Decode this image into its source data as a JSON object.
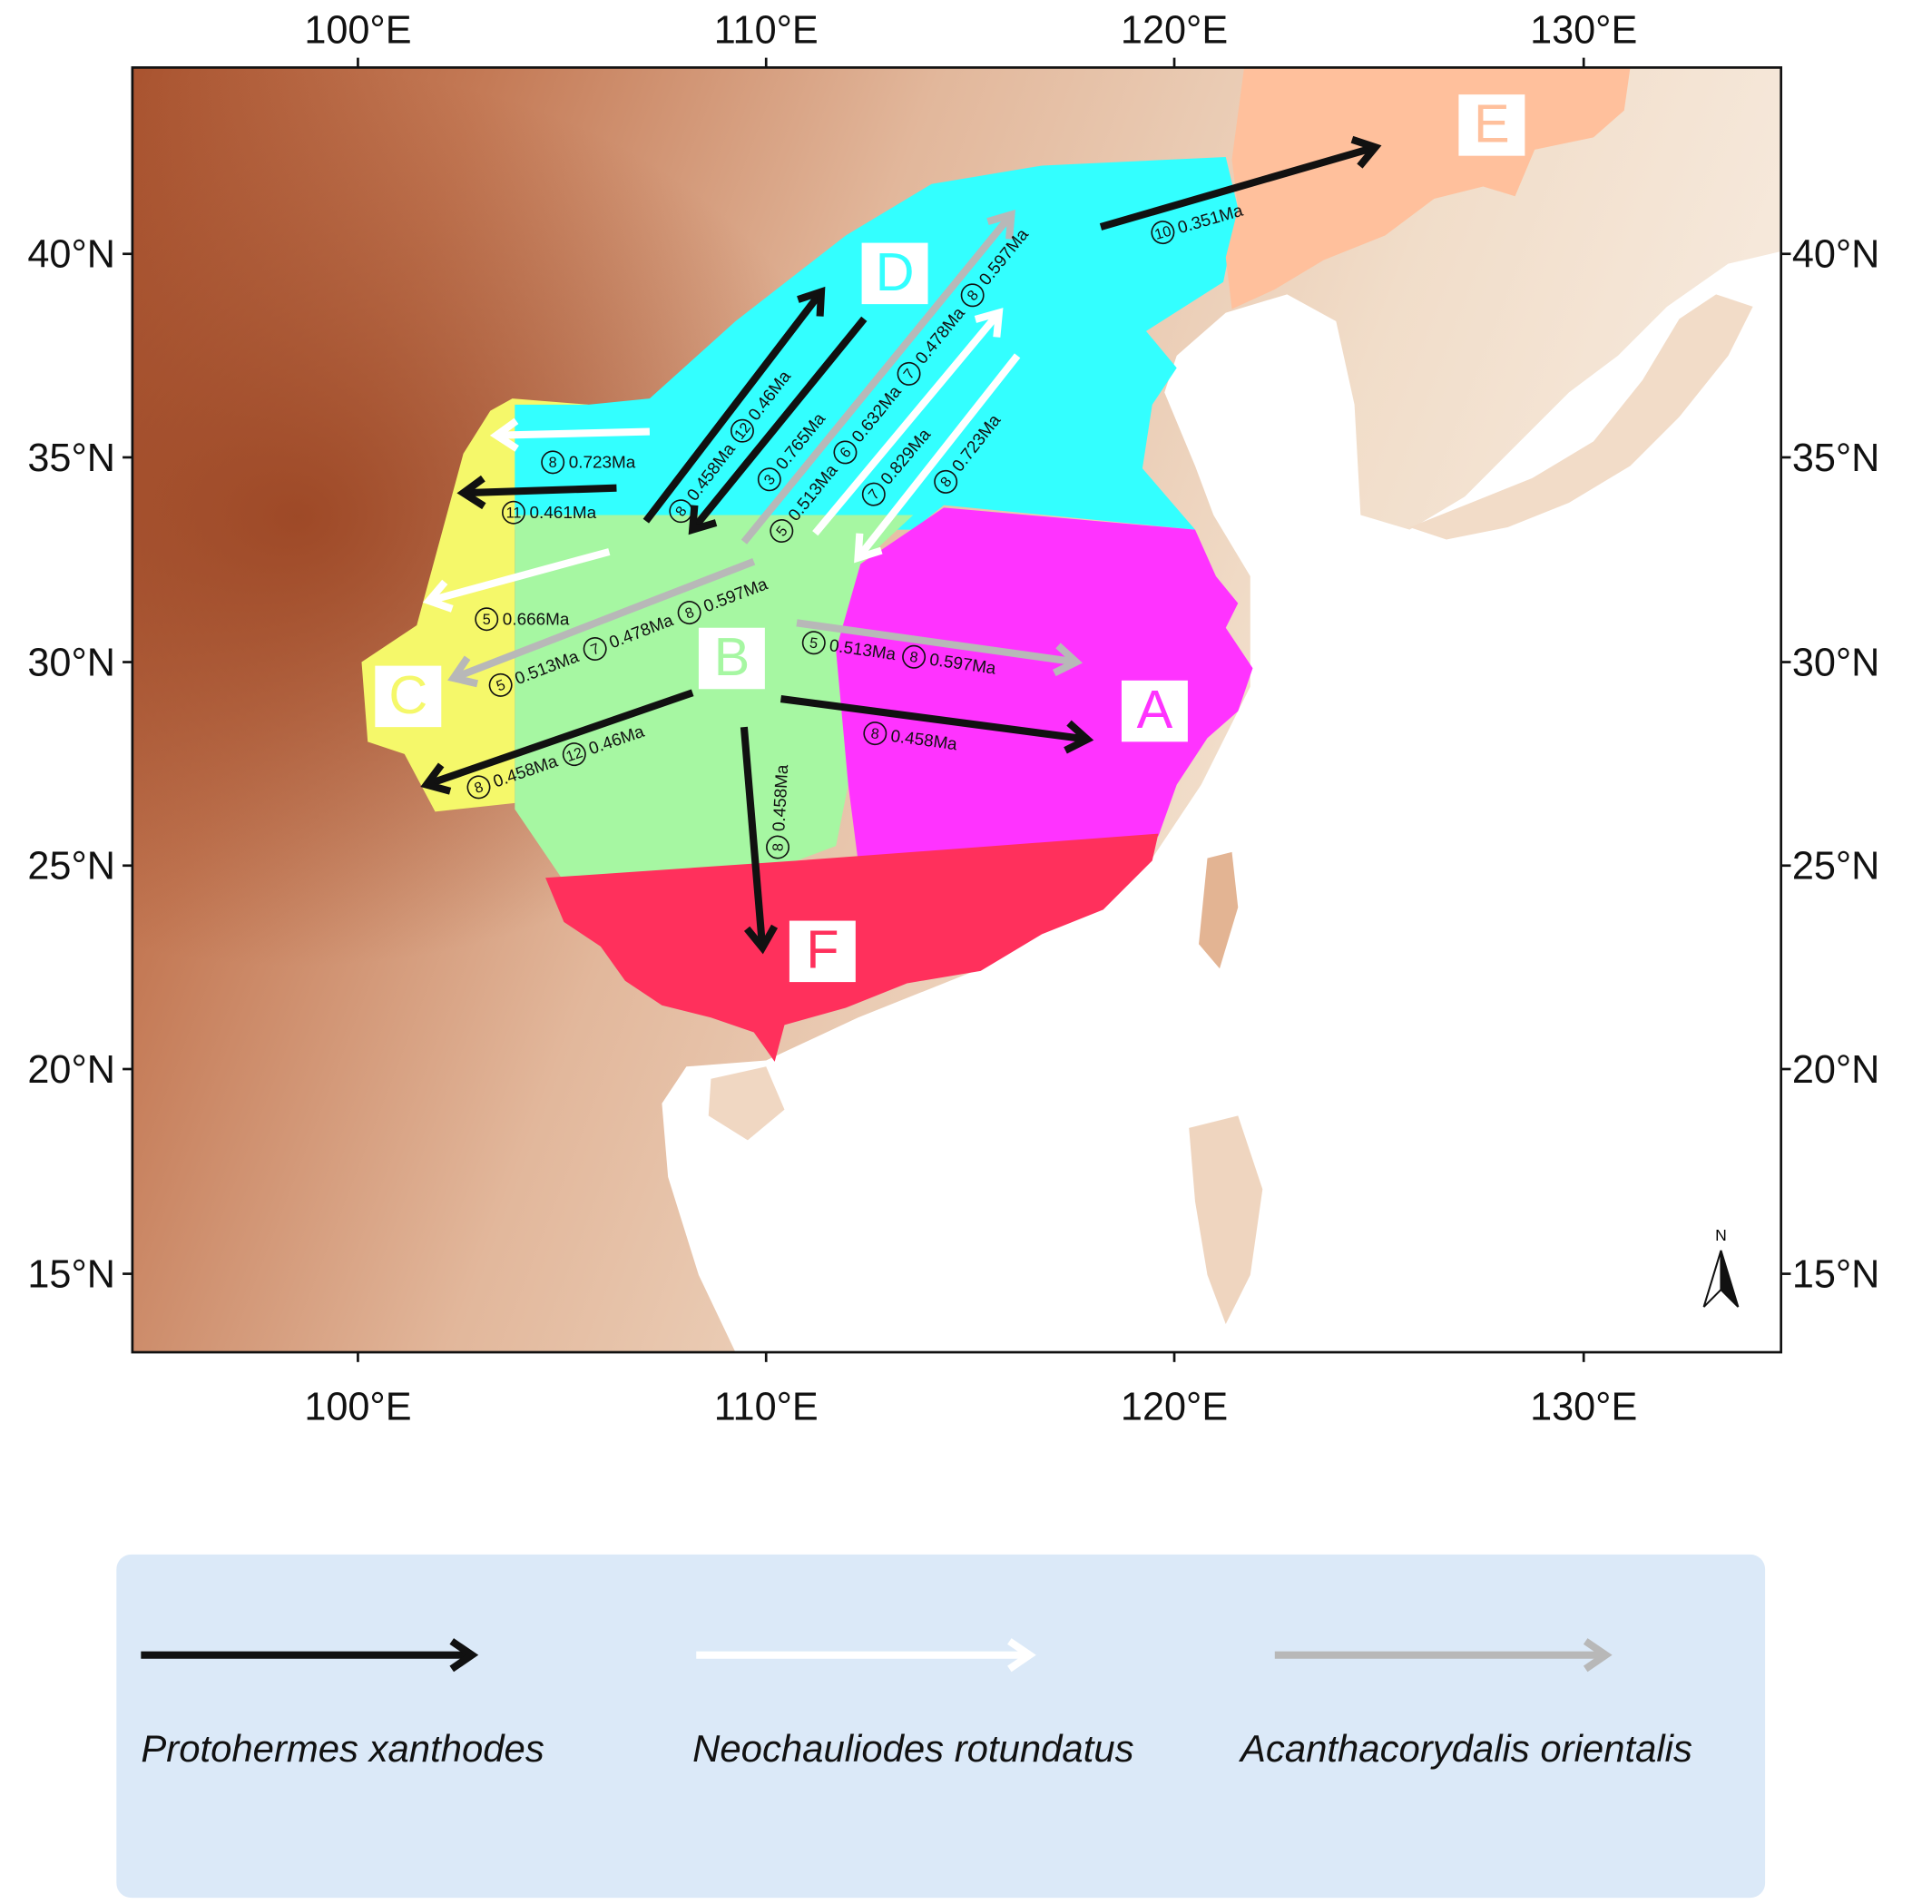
{
  "map": {
    "lon_ticks": [
      "100°E",
      "110°E",
      "120°E",
      "130°E"
    ],
    "lat_ticks": [
      "40°N",
      "35°N",
      "30°N",
      "25°N",
      "20°N",
      "15°N"
    ],
    "north": "N",
    "regions": [
      {
        "label": "A",
        "color": "#ff33ff"
      },
      {
        "label": "B",
        "color": "#a6f7a2"
      },
      {
        "label": "C",
        "color": "#f5f86a"
      },
      {
        "label": "D",
        "color": "#33ffff"
      },
      {
        "label": "E",
        "color": "#ffc09c"
      },
      {
        "label": "F",
        "color": "#ff305c"
      }
    ]
  },
  "species": [
    {
      "name": "Protohermes xanthodes",
      "color": "#111111",
      "arrows": [
        {
          "labels": [
            {
              "num": "8",
              "age": "0.458Ma"
            },
            {
              "num": "12",
              "age": "0.46Ma"
            }
          ]
        },
        {
          "labels": [
            {
              "num": "3",
              "age": "0.765Ma"
            }
          ]
        },
        {
          "labels": [
            {
              "num": "11",
              "age": "0.461Ma"
            }
          ]
        },
        {
          "labels": [
            {
              "num": "8",
              "age": "0.458Ma"
            },
            {
              "num": "12",
              "age": "0.46Ma"
            }
          ]
        },
        {
          "labels": [
            {
              "num": "8",
              "age": "0.458Ma"
            }
          ]
        },
        {
          "labels": [
            {
              "num": "8",
              "age": "0.458Ma"
            }
          ]
        },
        {
          "labels": [
            {
              "num": "10",
              "age": "0.351Ma"
            }
          ]
        }
      ]
    },
    {
      "name": "Neochauliodes rotundatus",
      "color": "#ffffff",
      "arrows": [
        {
          "labels": [
            {
              "num": "8",
              "age": "0.723Ma"
            }
          ]
        },
        {
          "labels": [
            {
              "num": "5",
              "age": "0.666Ma"
            }
          ]
        },
        {
          "labels": [
            {
              "num": "7",
              "age": "0.829Ma"
            }
          ]
        },
        {
          "labels": [
            {
              "num": "8",
              "age": "0.723Ma"
            }
          ]
        }
      ]
    },
    {
      "name": "Acanthacorydalis orientalis",
      "color": "#b8b8b8",
      "arrows": [
        {
          "labels": [
            {
              "num": "5",
              "age": "0.513Ma"
            },
            {
              "num": "6",
              "age": "0.632Ma"
            },
            {
              "num": "7",
              "age": "0.478Ma"
            },
            {
              "num": "8",
              "age": "0.597Ma"
            }
          ]
        },
        {
          "labels": [
            {
              "num": "5",
              "age": "0.513Ma"
            },
            {
              "num": "7",
              "age": "0.478Ma"
            },
            {
              "num": "8",
              "age": "0.597Ma"
            }
          ]
        },
        {
          "labels": [
            {
              "num": "5",
              "age": "0.513Ma"
            },
            {
              "num": "8",
              "age": "0.597Ma"
            }
          ]
        }
      ]
    }
  ]
}
